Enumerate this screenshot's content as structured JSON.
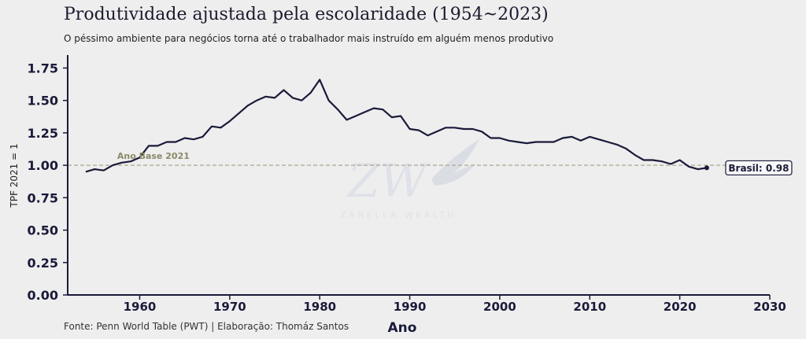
{
  "header": {
    "title": "Produtividade ajustada pela escolaridade (1954~2023)",
    "subtitle": "O péssimo ambiente para negócios torna até o trabalhador mais instruído em alguém menos produtivo"
  },
  "footer": {
    "source": "Fonte: Penn World Table (PWT) | Elaboração: Thomáz Santos"
  },
  "watermark": {
    "monogram": "ZW",
    "text": "ZANELLA WEALTH"
  },
  "chart_data": {
    "type": "line",
    "title": "Produtividade ajustada pela escolaridade (1954~2023)",
    "xlabel": "Ano",
    "ylabel": "TPF 2021 = 1",
    "xlim": [
      1952,
      2030
    ],
    "ylim": [
      0,
      1.85
    ],
    "xticks": [
      1960,
      1970,
      1980,
      1990,
      2000,
      2010,
      2020,
      2030
    ],
    "yticks": [
      0.0,
      0.25,
      0.5,
      0.75,
      1.0,
      1.25,
      1.5,
      1.75
    ],
    "ytick_labels": [
      "0.00",
      "0.25",
      "0.50",
      "0.75",
      "1.00",
      "1.25",
      "1.50",
      "1.75"
    ],
    "reference_line": {
      "y": 1.0,
      "label": "Ano Base 2021"
    },
    "end_label": "Brasil: 0.98",
    "series": [
      {
        "name": "Brasil",
        "color": "#1a1a3a",
        "x": [
          1954,
          1955,
          1956,
          1957,
          1958,
          1959,
          1960,
          1961,
          1962,
          1963,
          1964,
          1965,
          1966,
          1967,
          1968,
          1969,
          1970,
          1971,
          1972,
          1973,
          1974,
          1975,
          1976,
          1977,
          1978,
          1979,
          1980,
          1981,
          1982,
          1983,
          1984,
          1985,
          1986,
          1987,
          1988,
          1989,
          1990,
          1991,
          1992,
          1993,
          1994,
          1995,
          1996,
          1997,
          1998,
          1999,
          2000,
          2001,
          2002,
          2003,
          2004,
          2005,
          2006,
          2007,
          2008,
          2009,
          2010,
          2011,
          2012,
          2013,
          2014,
          2015,
          2016,
          2017,
          2018,
          2019,
          2020,
          2021,
          2022,
          2023
        ],
        "values": [
          0.95,
          0.97,
          0.96,
          1.0,
          1.02,
          1.03,
          1.06,
          1.15,
          1.15,
          1.18,
          1.18,
          1.21,
          1.2,
          1.22,
          1.3,
          1.29,
          1.34,
          1.4,
          1.46,
          1.5,
          1.53,
          1.52,
          1.58,
          1.52,
          1.5,
          1.56,
          1.66,
          1.5,
          1.43,
          1.35,
          1.38,
          1.41,
          1.44,
          1.43,
          1.37,
          1.38,
          1.28,
          1.27,
          1.23,
          1.26,
          1.29,
          1.29,
          1.28,
          1.28,
          1.26,
          1.21,
          1.21,
          1.19,
          1.18,
          1.17,
          1.18,
          1.18,
          1.18,
          1.21,
          1.22,
          1.19,
          1.22,
          1.2,
          1.18,
          1.16,
          1.13,
          1.08,
          1.04,
          1.04,
          1.03,
          1.01,
          1.04,
          0.99,
          0.97,
          0.98
        ]
      }
    ]
  }
}
